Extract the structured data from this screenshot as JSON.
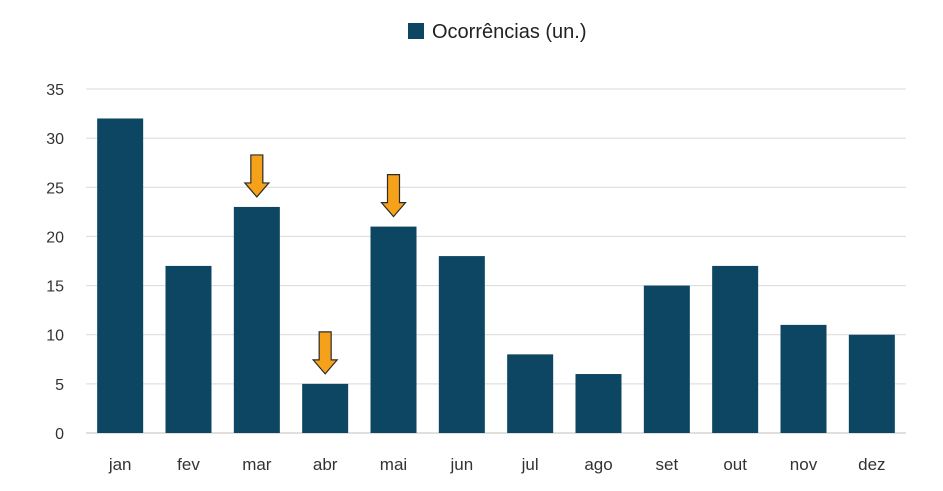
{
  "chart_data": {
    "type": "bar",
    "title": "",
    "xlabel": "",
    "ylabel": "",
    "categories": [
      "jan",
      "fev",
      "mar",
      "abr",
      "mai",
      "jun",
      "jul",
      "ago",
      "set",
      "out",
      "nov",
      "dez"
    ],
    "series": [
      {
        "name": "Ocorrências (un.)",
        "values": [
          32,
          17,
          23,
          5,
          21,
          18,
          8,
          6,
          15,
          17,
          11,
          10
        ],
        "color": "#0c4662"
      }
    ],
    "ylim": [
      0,
      35
    ],
    "yticks": [
      "0",
      "5",
      "10",
      "15",
      "20",
      "25",
      "30",
      "35"
    ],
    "grid": true,
    "legend_position": "top-center",
    "annotations": {
      "arrow_color": "#f5a21a",
      "arrow_icon": "down-arrow-icon",
      "highlighted_categories": [
        "mar",
        "abr",
        "mai"
      ]
    }
  }
}
